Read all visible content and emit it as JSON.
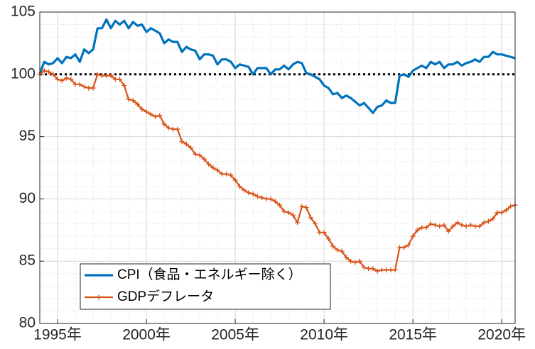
{
  "chart_data": {
    "type": "line",
    "x": [
      1994,
      1994.25,
      1994.5,
      1994.75,
      1995,
      1995.25,
      1995.5,
      1995.75,
      1996,
      1996.25,
      1996.5,
      1996.75,
      1997,
      1997.25,
      1997.5,
      1997.75,
      1998,
      1998.25,
      1998.5,
      1998.75,
      1999,
      1999.25,
      1999.5,
      1999.75,
      2000,
      2000.25,
      2000.5,
      2000.75,
      2001,
      2001.25,
      2001.5,
      2001.75,
      2002,
      2002.25,
      2002.5,
      2002.75,
      2003,
      2003.25,
      2003.5,
      2003.75,
      2004,
      2004.25,
      2004.5,
      2004.75,
      2005,
      2005.25,
      2005.5,
      2005.75,
      2006,
      2006.25,
      2006.5,
      2006.75,
      2007,
      2007.25,
      2007.5,
      2007.75,
      2008,
      2008.25,
      2008.5,
      2008.75,
      2009,
      2009.25,
      2009.5,
      2009.75,
      2010,
      2010.25,
      2010.5,
      2010.75,
      2011,
      2011.25,
      2011.5,
      2011.75,
      2012,
      2012.25,
      2012.5,
      2012.75,
      2013,
      2013.25,
      2013.5,
      2013.75,
      2014,
      2014.25,
      2014.5,
      2014.75,
      2015,
      2015.25,
      2015.5,
      2015.75,
      2016,
      2016.25,
      2016.5,
      2016.75,
      2017,
      2017.25,
      2017.5,
      2017.75,
      2018,
      2018.25,
      2018.5,
      2018.75,
      2019,
      2019.25,
      2019.5,
      2019.75,
      2020,
      2020.25,
      2020.5,
      2020.75
    ],
    "series": [
      {
        "name": "CPI（食品・エネルギー除く）",
        "color": "#0072bd",
        "marker": "none",
        "values": [
          100.05,
          101.0,
          100.8,
          100.9,
          101.3,
          100.9,
          101.4,
          101.3,
          101.6,
          101.0,
          102.0,
          101.7,
          102.0,
          103.7,
          103.7,
          104.4,
          103.7,
          104.3,
          104.0,
          104.3,
          103.7,
          104.2,
          103.9,
          104.0,
          103.4,
          103.7,
          103.5,
          103.3,
          102.5,
          102.8,
          102.6,
          102.6,
          101.8,
          102.2,
          102.0,
          101.9,
          101.2,
          101.6,
          101.6,
          101.5,
          100.8,
          101.2,
          101.2,
          101.0,
          100.5,
          100.8,
          100.7,
          100.6,
          100.0,
          100.5,
          100.5,
          100.5,
          100.0,
          100.4,
          100.4,
          100.7,
          100.4,
          100.8,
          101.0,
          100.9,
          100.1,
          100.0,
          99.8,
          99.6,
          99.1,
          98.9,
          98.4,
          98.5,
          98.1,
          98.3,
          98.1,
          97.8,
          97.5,
          97.7,
          97.3,
          96.9,
          97.4,
          97.5,
          97.9,
          97.7,
          97.7,
          99.9,
          100.0,
          99.8,
          100.3,
          100.5,
          100.7,
          100.5,
          101.0,
          100.8,
          101.0,
          100.5,
          100.8,
          100.8,
          101.0,
          100.7,
          100.9,
          101.0,
          101.2,
          101.0,
          101.4,
          101.4,
          101.8,
          101.6,
          101.6,
          101.5,
          101.4,
          101.3
        ]
      },
      {
        "name": "GDPデフレータ",
        "color": "#d95319",
        "marker": "plus",
        "values": [
          100.0,
          100.3,
          100.2,
          100.0,
          99.6,
          99.5,
          99.7,
          99.6,
          99.2,
          99.2,
          99.0,
          98.9,
          98.9,
          100.0,
          99.9,
          99.9,
          99.9,
          99.6,
          99.6,
          99.1,
          98.0,
          97.9,
          97.6,
          97.2,
          97.0,
          96.8,
          96.6,
          96.7,
          96.0,
          95.7,
          95.6,
          95.6,
          94.6,
          94.4,
          94.1,
          93.6,
          93.5,
          93.2,
          92.8,
          92.5,
          92.3,
          92.0,
          92.0,
          91.9,
          91.5,
          91.0,
          90.7,
          90.5,
          90.4,
          90.2,
          90.1,
          90.0,
          90.0,
          89.8,
          89.5,
          89.0,
          88.9,
          88.7,
          88.1,
          89.4,
          89.3,
          88.5,
          88.0,
          87.3,
          87.3,
          86.8,
          86.2,
          85.9,
          85.8,
          85.3,
          85.0,
          84.9,
          85.0,
          84.5,
          84.4,
          84.4,
          84.2,
          84.3,
          84.3,
          84.3,
          84.3,
          86.1,
          86.1,
          86.3,
          87.0,
          87.5,
          87.7,
          87.7,
          88.0,
          87.9,
          87.8,
          87.9,
          87.4,
          87.8,
          88.1,
          87.9,
          87.8,
          87.9,
          87.8,
          87.8,
          88.1,
          88.2,
          88.4,
          88.9,
          88.9,
          89.1,
          89.4,
          89.5
        ]
      }
    ],
    "xlim": [
      1994,
      2020.75
    ],
    "xticks": [
      {
        "value": 1995,
        "label": "1995年"
      },
      {
        "value": 2000,
        "label": "2000年"
      },
      {
        "value": 2005,
        "label": "2005年"
      },
      {
        "value": 2010,
        "label": "2010年"
      },
      {
        "value": 2015,
        "label": "2015年"
      },
      {
        "value": 2020,
        "label": "2020年"
      }
    ],
    "ylim": [
      80,
      105
    ],
    "yticks": [
      80,
      85,
      90,
      95,
      100,
      105
    ],
    "reference_line": 100,
    "grid": true,
    "minor_grid": true,
    "legend": "lower left"
  }
}
